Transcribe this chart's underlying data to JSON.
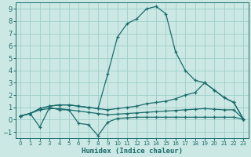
{
  "xlabel": "Humidex (Indice chaleur)",
  "xlim": [
    -0.5,
    23.5
  ],
  "ylim": [
    -1.5,
    9.5
  ],
  "xticks": [
    0,
    1,
    2,
    3,
    4,
    5,
    6,
    7,
    8,
    9,
    10,
    11,
    12,
    13,
    14,
    15,
    16,
    17,
    18,
    19,
    20,
    21,
    22,
    23
  ],
  "yticks": [
    -1,
    0,
    1,
    2,
    3,
    4,
    5,
    6,
    7,
    8,
    9
  ],
  "bg_color": "#cce8e4",
  "grid_color": "#9ececa",
  "line_color": "#1a6b6b",
  "line_width": 0.9,
  "marker": "+",
  "marker_size": 3.5,
  "marker_lw": 0.9,
  "series": [
    {
      "x": [
        0,
        1,
        2,
        3,
        4,
        5,
        6,
        7,
        8,
        9,
        10,
        11,
        12,
        13,
        14,
        15,
        16,
        17,
        18,
        19,
        20,
        21,
        22,
        23
      ],
      "y": [
        0.3,
        0.5,
        -0.6,
        1.0,
        0.8,
        0.8,
        -0.3,
        -0.4,
        -1.3,
        -0.2,
        0.1,
        0.15,
        0.2,
        0.2,
        0.2,
        0.2,
        0.2,
        0.2,
        0.2,
        0.2,
        0.2,
        0.2,
        0.2,
        0.05
      ]
    },
    {
      "x": [
        0,
        1,
        2,
        3,
        4,
        5,
        6,
        7,
        8,
        9,
        10,
        11,
        12,
        13,
        14,
        15,
        16,
        17,
        18,
        19,
        20,
        21,
        22,
        23
      ],
      "y": [
        0.3,
        0.5,
        0.8,
        0.9,
        0.9,
        0.8,
        0.7,
        0.6,
        0.5,
        0.4,
        0.45,
        0.5,
        0.55,
        0.6,
        0.65,
        0.7,
        0.75,
        0.8,
        0.85,
        0.9,
        0.85,
        0.8,
        0.8,
        0.05
      ]
    },
    {
      "x": [
        0,
        1,
        2,
        3,
        4,
        5,
        6,
        7,
        8,
        9,
        10,
        11,
        12,
        13,
        14,
        15,
        16,
        17,
        18,
        19,
        20,
        21,
        22,
        23
      ],
      "y": [
        0.3,
        0.5,
        0.9,
        1.1,
        1.2,
        1.2,
        1.1,
        1.0,
        0.9,
        0.8,
        0.9,
        1.0,
        1.1,
        1.3,
        1.4,
        1.5,
        1.7,
        2.0,
        2.2,
        3.0,
        2.4,
        1.8,
        1.4,
        0.05
      ]
    },
    {
      "x": [
        0,
        1,
        2,
        3,
        4,
        5,
        6,
        7,
        8,
        9,
        10,
        11,
        12,
        13,
        14,
        15,
        16,
        17,
        18,
        19,
        20,
        21,
        22,
        23
      ],
      "y": [
        0.3,
        0.5,
        0.9,
        1.1,
        1.2,
        1.2,
        1.1,
        1.0,
        0.9,
        3.7,
        6.7,
        7.8,
        8.2,
        9.0,
        9.2,
        8.6,
        5.5,
        4.0,
        3.2,
        3.0,
        2.4,
        1.8,
        1.4,
        0.05
      ]
    }
  ]
}
